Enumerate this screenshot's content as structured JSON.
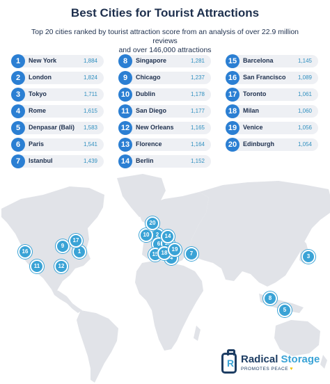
{
  "header": {
    "title": "Best Cities for Tourist Attractions",
    "subtitle_line1": "Top 20 cities ranked by tourist attraction score from an analysis of over 22.9 million reviews",
    "subtitle_line2": "and over 146,000 attractions"
  },
  "rankings": [
    {
      "rank": "1",
      "city": "New York",
      "score": "1,884"
    },
    {
      "rank": "2",
      "city": "London",
      "score": "1,824"
    },
    {
      "rank": "3",
      "city": "Tokyo",
      "score": "1,711"
    },
    {
      "rank": "4",
      "city": "Rome",
      "score": "1,615"
    },
    {
      "rank": "5",
      "city": "Denpasar (Bali)",
      "score": "1,583"
    },
    {
      "rank": "6",
      "city": "Paris",
      "score": "1,541"
    },
    {
      "rank": "7",
      "city": "Istanbul",
      "score": "1,439"
    },
    {
      "rank": "8",
      "city": "Singapore",
      "score": "1,281"
    },
    {
      "rank": "9",
      "city": "Chicago",
      "score": "1,237"
    },
    {
      "rank": "10",
      "city": "Dublin",
      "score": "1,178"
    },
    {
      "rank": "11",
      "city": "San Diego",
      "score": "1,177"
    },
    {
      "rank": "12",
      "city": "New Orleans",
      "score": "1,165"
    },
    {
      "rank": "13",
      "city": "Florence",
      "score": "1,164"
    },
    {
      "rank": "14",
      "city": "Berlin",
      "score": "1,152"
    },
    {
      "rank": "15",
      "city": "Barcelona",
      "score": "1,145"
    },
    {
      "rank": "16",
      "city": "San Francisco",
      "score": "1,089"
    },
    {
      "rank": "17",
      "city": "Toronto",
      "score": "1,061"
    },
    {
      "rank": "18",
      "city": "Milan",
      "score": "1,060"
    },
    {
      "rank": "19",
      "city": "Venice",
      "score": "1,056"
    },
    {
      "rank": "20",
      "city": "Edinburgh",
      "score": "1,054"
    }
  ],
  "map_markers": [
    "1",
    "2",
    "3",
    "4",
    "5",
    "6",
    "7",
    "8",
    "9",
    "10",
    "11",
    "12",
    "13",
    "14",
    "15",
    "16",
    "17",
    "18",
    "19",
    "20"
  ],
  "logo": {
    "word1": "Radical",
    "word2": "Storage",
    "mark_letter": "R",
    "tagline": "PROMOTES PEACE",
    "heart": "♥"
  },
  "colors": {
    "accent": "#2b7fd3",
    "marker": "#3aa3d6",
    "land": "#e1e3e8",
    "row_bg": "#eef0f4",
    "title": "#1d2f4d",
    "score": "#2f8fbf"
  }
}
